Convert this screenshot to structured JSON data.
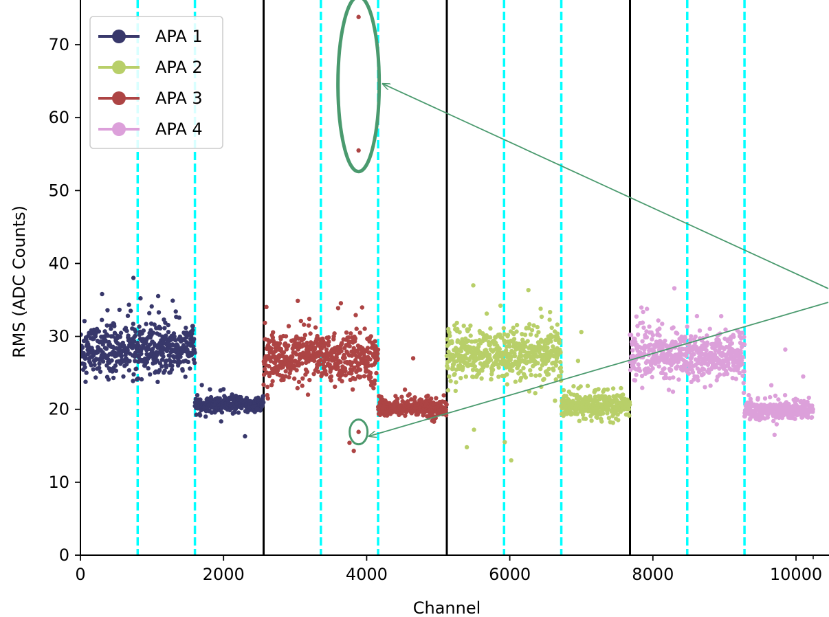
{
  "chart_data": {
    "type": "scatter",
    "title": "",
    "xlabel": "Channel",
    "ylabel": "RMS (ADC Counts)",
    "xlim": [
      0,
      10240
    ],
    "ylim": [
      0,
      75
    ],
    "xticks": [
      0,
      2000,
      4000,
      6000,
      8000,
      10000
    ],
    "yticks": [
      0,
      10,
      20,
      30,
      40,
      50,
      60,
      70
    ],
    "grid": false,
    "legend_position": "top-left",
    "apa_boundaries": [
      2560,
      5120,
      7680
    ],
    "plane_boundaries": [
      800,
      1600,
      3360,
      4160,
      5920,
      6720,
      8480,
      9280
    ],
    "series": [
      {
        "name": "APA 1",
        "color": "#38386b",
        "segments": [
          {
            "x": [
              0,
              1600
            ],
            "mean": 28.0,
            "spread": 2.3
          },
          {
            "x": [
              1600,
              2560
            ],
            "mean": 20.6,
            "spread": 0.8
          }
        ],
        "outliers": [
          {
            "x": 2300,
            "y": 16.3
          },
          {
            "x": 1290,
            "y": 34.9
          }
        ]
      },
      {
        "name": "APA 2",
        "color": "#b8cf69",
        "segments": [
          {
            "x": [
              5120,
              6720
            ],
            "mean": 27.5,
            "spread": 2.4
          },
          {
            "x": [
              6720,
              7680
            ],
            "mean": 20.4,
            "spread": 1.2
          }
        ],
        "outliers": [
          {
            "x": 5400,
            "y": 14.8
          },
          {
            "x": 5930,
            "y": 15.5
          },
          {
            "x": 6020,
            "y": 13.0
          },
          {
            "x": 5500,
            "y": 17.2
          },
          {
            "x": 7000,
            "y": 30.6
          },
          {
            "x": 5490,
            "y": 37.0
          }
        ]
      },
      {
        "name": "APA 3",
        "color": "#ad4444",
        "segments": [
          {
            "x": [
              2560,
              4160
            ],
            "mean": 27.0,
            "spread": 2.3
          },
          {
            "x": [
              4160,
              5120
            ],
            "mean": 20.2,
            "spread": 0.9
          }
        ],
        "outliers": [
          {
            "x": 3887,
            "y": 73.8
          },
          {
            "x": 3887,
            "y": 55.5
          },
          {
            "x": 3887,
            "y": 16.9
          },
          {
            "x": 3760,
            "y": 15.4
          },
          {
            "x": 3820,
            "y": 14.3
          },
          {
            "x": 4650,
            "y": 27.0
          },
          {
            "x": 3180,
            "y": 22.0
          },
          {
            "x": 2620,
            "y": 21.5
          }
        ]
      },
      {
        "name": "APA 4",
        "color": "#dca0da",
        "segments": [
          {
            "x": [
              7680,
              9280
            ],
            "mean": 27.2,
            "spread": 2.3
          },
          {
            "x": [
              9280,
              10240
            ],
            "mean": 19.8,
            "spread": 0.9
          }
        ],
        "outliers": [
          {
            "x": 9850,
            "y": 28.2
          },
          {
            "x": 10100,
            "y": 24.5
          },
          {
            "x": 8300,
            "y": 36.6
          },
          {
            "x": 9700,
            "y": 16.5
          }
        ]
      }
    ],
    "annotations": [
      {
        "shape": "ellipse",
        "cx": 3887,
        "cy": 64.6,
        "rx": 360,
        "ry": 12.0,
        "color": "#4a9a6e"
      },
      {
        "shape": "ellipse",
        "cx": 3887,
        "cy": 16.9,
        "rx": 150,
        "ry": 1.7,
        "color": "#4a9a6e"
      }
    ]
  }
}
